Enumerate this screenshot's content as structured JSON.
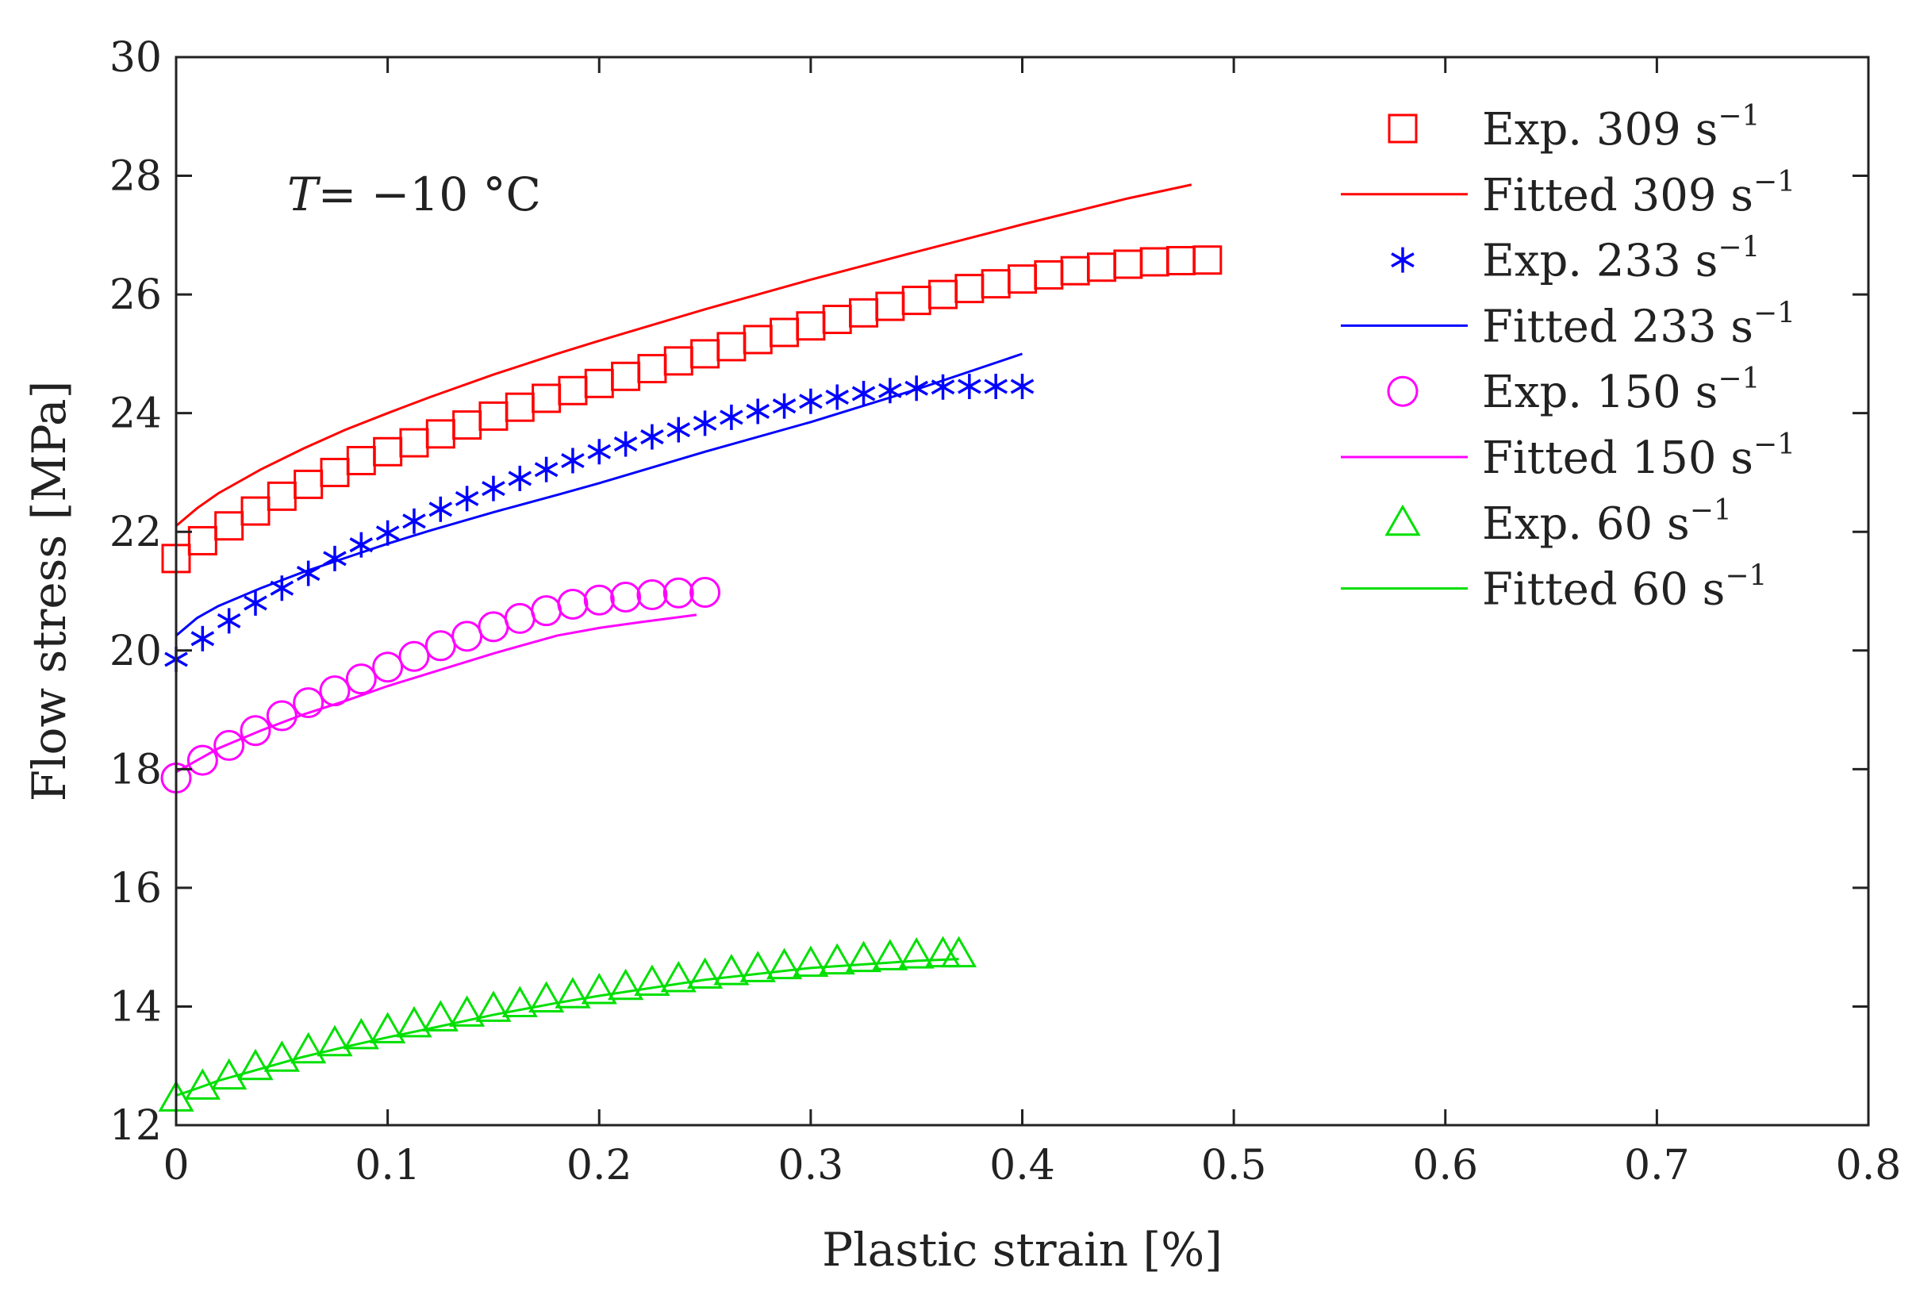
{
  "chart_data": {
    "type": "line",
    "title": "",
    "xlabel": "Plastic strain [%]",
    "ylabel": "Flow stress [MPa]",
    "xlim": [
      0,
      0.8
    ],
    "ylim": [
      12,
      30
    ],
    "xticks": [
      0,
      0.1,
      0.2,
      0.3,
      0.4,
      0.5,
      0.6,
      0.7,
      0.8
    ],
    "xtick_labels": [
      "0",
      "0.1",
      "0.2",
      "0.3",
      "0.4",
      "0.5",
      "0.6",
      "0.7",
      "0.8"
    ],
    "yticks": [
      12,
      14,
      16,
      18,
      20,
      22,
      24,
      26,
      28,
      30
    ],
    "ytick_labels": [
      "12",
      "14",
      "16",
      "18",
      "20",
      "22",
      "24",
      "26",
      "28",
      "30"
    ],
    "grid": false,
    "legend_position": "top-right",
    "annotation": {
      "prefix": "T",
      "text": "= −10 °C"
    },
    "series": [
      {
        "name": "Exp. 309 s−1",
        "label": "Exp. 309 s",
        "sup": "−1",
        "kind": "marker",
        "marker": "square",
        "color": "#ff0000",
        "x": [
          0,
          0.0125,
          0.025,
          0.0375,
          0.05,
          0.0625,
          0.075,
          0.0875,
          0.1,
          0.1125,
          0.125,
          0.1375,
          0.15,
          0.1625,
          0.175,
          0.1875,
          0.2,
          0.2125,
          0.225,
          0.2375,
          0.25,
          0.2625,
          0.275,
          0.2875,
          0.3,
          0.3125,
          0.325,
          0.3375,
          0.35,
          0.3625,
          0.375,
          0.3875,
          0.4,
          0.4125,
          0.425,
          0.4375,
          0.45,
          0.4625,
          0.475,
          0.4875
        ],
        "y": [
          21.55,
          21.85,
          22.1,
          22.35,
          22.6,
          22.8,
          23.0,
          23.2,
          23.35,
          23.5,
          23.65,
          23.8,
          23.95,
          24.1,
          24.25,
          24.38,
          24.5,
          24.62,
          24.75,
          24.88,
          25.0,
          25.12,
          25.24,
          25.36,
          25.47,
          25.58,
          25.69,
          25.8,
          25.9,
          26.0,
          26.1,
          26.18,
          26.26,
          26.33,
          26.4,
          26.46,
          26.51,
          26.55,
          26.57,
          26.58
        ]
      },
      {
        "name": "Fitted 309 s−1",
        "label": "Fitted  309 s",
        "sup": "−1",
        "kind": "line",
        "color": "#ff0000",
        "x": [
          0,
          0.01,
          0.02,
          0.04,
          0.06,
          0.08,
          0.1,
          0.12,
          0.15,
          0.18,
          0.2,
          0.25,
          0.3,
          0.35,
          0.4,
          0.45,
          0.48
        ],
        "y": [
          22.1,
          22.4,
          22.65,
          23.05,
          23.4,
          23.72,
          24.0,
          24.27,
          24.65,
          25.0,
          25.22,
          25.75,
          26.25,
          26.72,
          27.18,
          27.62,
          27.85
        ]
      },
      {
        "name": "Exp. 233 s−1",
        "label": "Exp. 233 s",
        "sup": "−1",
        "kind": "marker",
        "marker": "asterisk",
        "color": "#0000ff",
        "x": [
          0,
          0.0125,
          0.025,
          0.0375,
          0.05,
          0.0625,
          0.075,
          0.0875,
          0.1,
          0.1125,
          0.125,
          0.1375,
          0.15,
          0.1625,
          0.175,
          0.1875,
          0.2,
          0.2125,
          0.225,
          0.2375,
          0.25,
          0.2625,
          0.275,
          0.2875,
          0.3,
          0.3125,
          0.325,
          0.3375,
          0.35,
          0.3625,
          0.375,
          0.3875,
          0.4
        ],
        "y": [
          19.85,
          20.2,
          20.5,
          20.8,
          21.05,
          21.3,
          21.55,
          21.78,
          21.98,
          22.18,
          22.38,
          22.56,
          22.73,
          22.9,
          23.05,
          23.2,
          23.35,
          23.48,
          23.6,
          23.72,
          23.83,
          23.93,
          24.03,
          24.12,
          24.2,
          24.27,
          24.33,
          24.38,
          24.42,
          24.44,
          24.45,
          24.45,
          24.45
        ]
      },
      {
        "name": "Fitted 233 s−1",
        "label": "Fitted  233 s",
        "sup": "−1",
        "kind": "line",
        "color": "#0000ff",
        "x": [
          0,
          0.01,
          0.02,
          0.04,
          0.06,
          0.08,
          0.1,
          0.12,
          0.15,
          0.18,
          0.2,
          0.25,
          0.3,
          0.35,
          0.4
        ],
        "y": [
          20.25,
          20.55,
          20.75,
          21.05,
          21.32,
          21.56,
          21.8,
          22.02,
          22.33,
          22.62,
          22.82,
          23.35,
          23.85,
          24.4,
          25.0
        ]
      },
      {
        "name": "Exp. 150 s−1",
        "label": "Exp. 150 s",
        "sup": "−1",
        "kind": "marker",
        "marker": "circle",
        "color": "#ff00ff",
        "x": [
          0,
          0.0125,
          0.025,
          0.0375,
          0.05,
          0.0625,
          0.075,
          0.0875,
          0.1,
          0.1125,
          0.125,
          0.1375,
          0.15,
          0.1625,
          0.175,
          0.1875,
          0.2,
          0.2125,
          0.225,
          0.2375,
          0.25
        ],
        "y": [
          17.85,
          18.15,
          18.4,
          18.65,
          18.9,
          19.12,
          19.32,
          19.52,
          19.72,
          19.9,
          20.08,
          20.24,
          20.4,
          20.54,
          20.67,
          20.78,
          20.85,
          20.9,
          20.94,
          20.97,
          20.98
        ]
      },
      {
        "name": "Fitted 150 s−1",
        "label": "Fitted  150 s",
        "sup": "−1",
        "kind": "line",
        "color": "#ff00ff",
        "x": [
          0,
          0.01,
          0.02,
          0.04,
          0.06,
          0.08,
          0.1,
          0.12,
          0.15,
          0.18,
          0.2,
          0.22,
          0.246
        ],
        "y": [
          17.95,
          18.15,
          18.35,
          18.65,
          18.92,
          19.15,
          19.4,
          19.62,
          19.95,
          20.25,
          20.38,
          20.48,
          20.6
        ]
      },
      {
        "name": "Exp. 60 s−1",
        "label": "Exp. 60 s",
        "sup": "−1",
        "kind": "marker",
        "marker": "triangle",
        "color": "#00e000",
        "x": [
          0,
          0.0125,
          0.025,
          0.0375,
          0.05,
          0.0625,
          0.075,
          0.0875,
          0.1,
          0.1125,
          0.125,
          0.1375,
          0.15,
          0.1625,
          0.175,
          0.1875,
          0.2,
          0.2125,
          0.225,
          0.2375,
          0.25,
          0.2625,
          0.275,
          0.2875,
          0.3,
          0.3125,
          0.325,
          0.3375,
          0.35,
          0.3625,
          0.37
        ],
        "y": [
          12.45,
          12.65,
          12.82,
          12.98,
          13.12,
          13.26,
          13.38,
          13.5,
          13.6,
          13.7,
          13.8,
          13.88,
          13.96,
          14.04,
          14.12,
          14.19,
          14.26,
          14.33,
          14.4,
          14.46,
          14.52,
          14.58,
          14.63,
          14.68,
          14.72,
          14.76,
          14.8,
          14.83,
          14.86,
          14.88,
          14.88
        ]
      },
      {
        "name": "Fitted 60 s−1",
        "label": "Fitted  60 s",
        "sup": "−1",
        "kind": "line",
        "color": "#00e000",
        "x": [
          0,
          0.01,
          0.02,
          0.04,
          0.06,
          0.08,
          0.1,
          0.12,
          0.15,
          0.18,
          0.2,
          0.25,
          0.3,
          0.35,
          0.37
        ],
        "y": [
          12.5,
          12.62,
          12.75,
          12.95,
          13.15,
          13.32,
          13.48,
          13.63,
          13.86,
          14.06,
          14.18,
          14.45,
          14.65,
          14.77,
          14.8
        ]
      }
    ]
  }
}
